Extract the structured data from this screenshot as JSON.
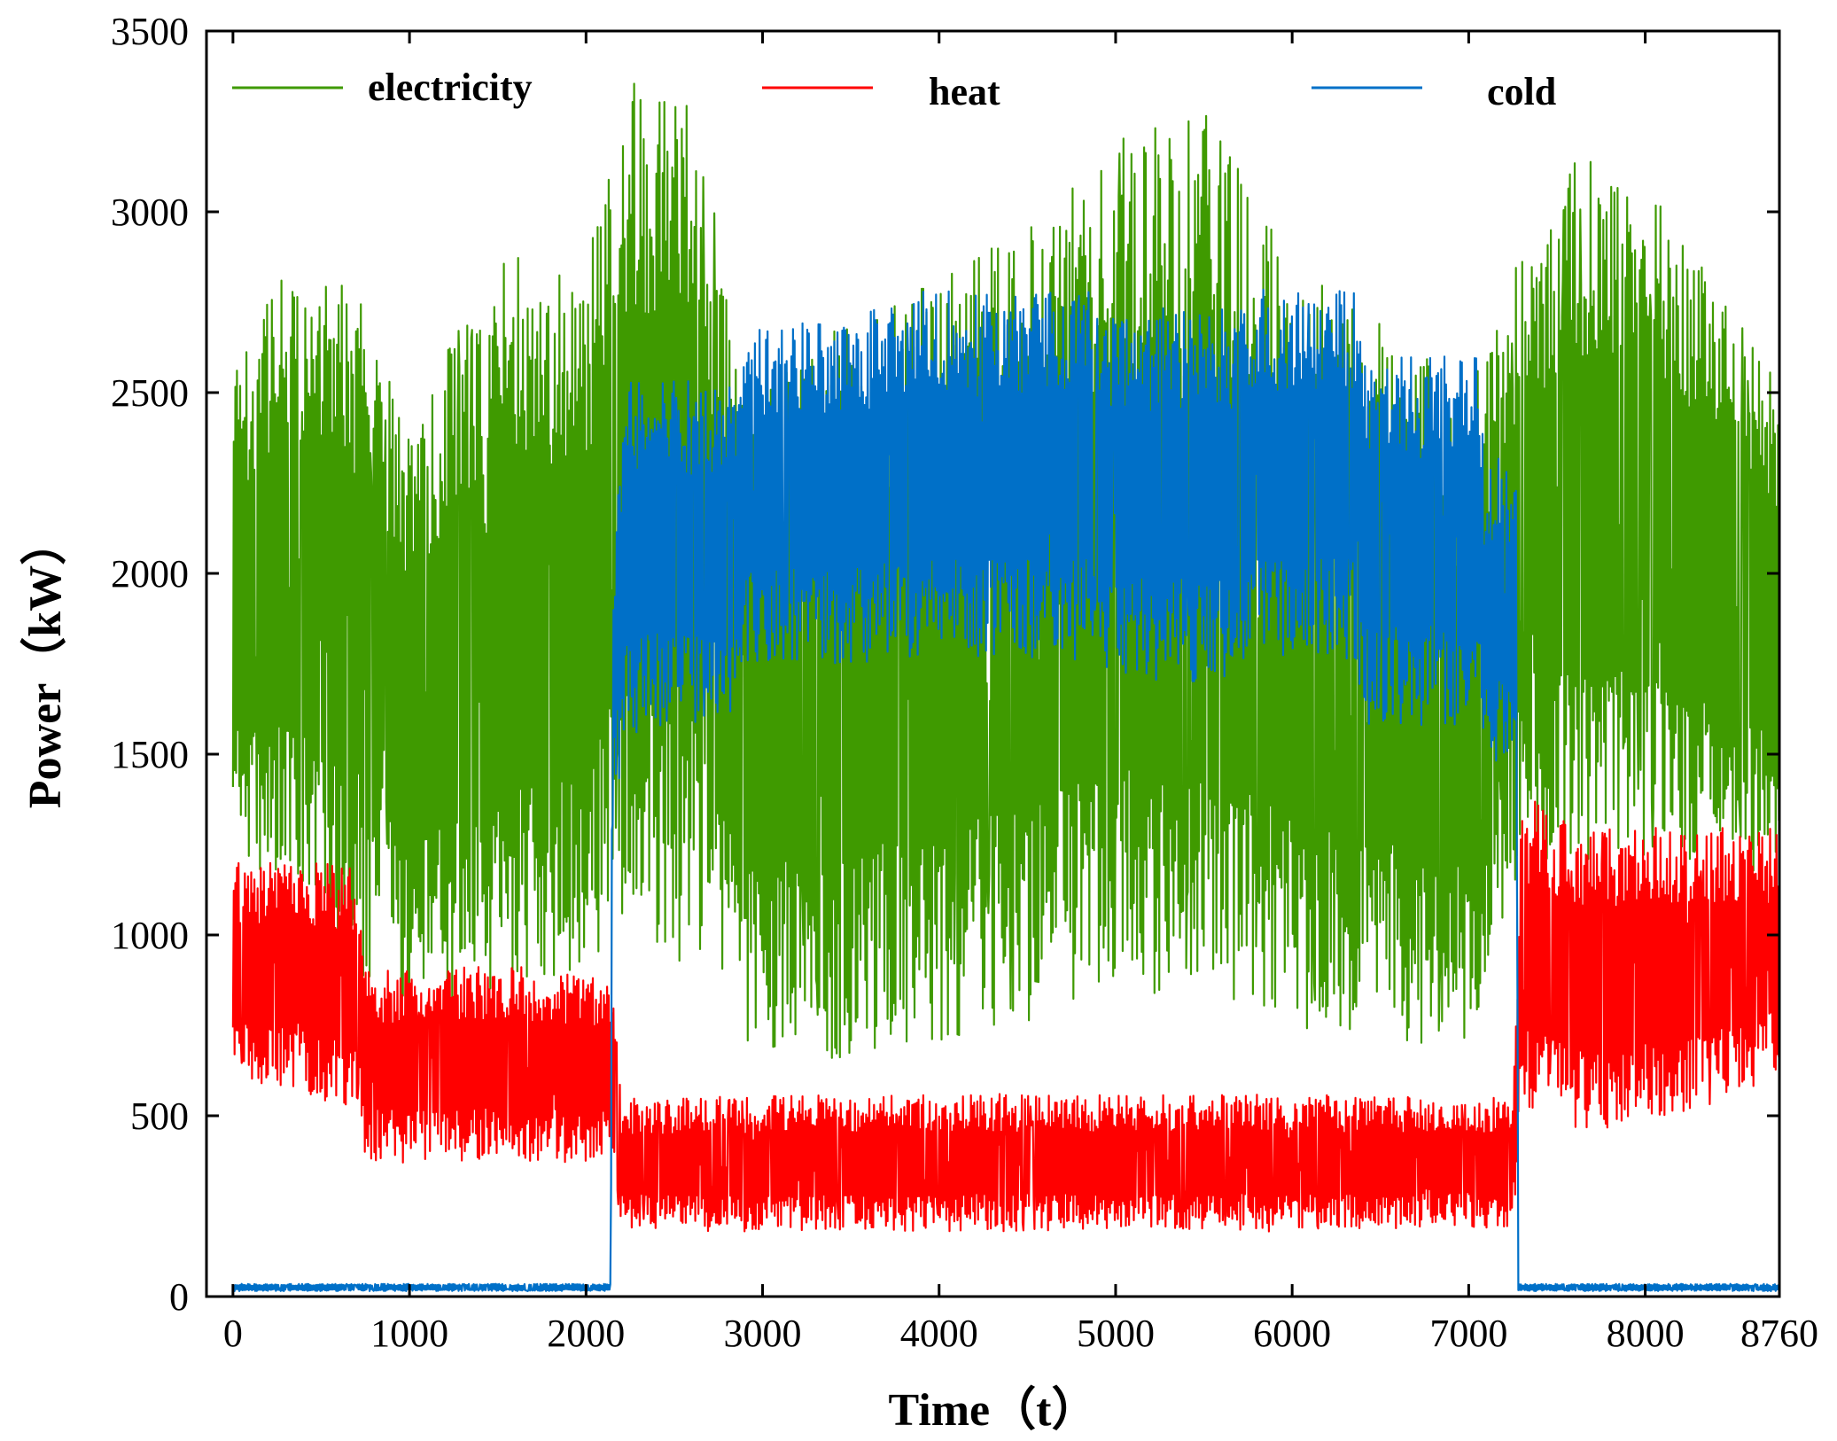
{
  "chart_data": {
    "type": "line",
    "xlabel": "Time（t）",
    "ylabel": "Power（kW）",
    "xlim": [
      -150,
      8760
    ],
    "ylim": [
      0,
      3500
    ],
    "x_ticks": [
      0,
      1000,
      2000,
      3000,
      4000,
      5000,
      6000,
      7000,
      8000,
      8760
    ],
    "y_ticks": [
      0,
      500,
      1000,
      1500,
      2000,
      2500,
      3000,
      3500
    ],
    "grid": false,
    "legend_position": "top",
    "series": [
      {
        "name": "electricity",
        "color": "#3f9a00",
        "envelope": [
          {
            "x": 0,
            "low": 1200,
            "high": 2600
          },
          {
            "x": 300,
            "low": 1150,
            "high": 2850
          },
          {
            "x": 700,
            "low": 900,
            "high": 2800
          },
          {
            "x": 1000,
            "low": 800,
            "high": 2400
          },
          {
            "x": 1500,
            "low": 850,
            "high": 2900
          },
          {
            "x": 2000,
            "low": 900,
            "high": 2800
          },
          {
            "x": 2150,
            "low": 1000,
            "high": 3350
          },
          {
            "x": 2600,
            "low": 900,
            "high": 3400
          },
          {
            "x": 2900,
            "low": 700,
            "high": 2500
          },
          {
            "x": 3400,
            "low": 650,
            "high": 2700
          },
          {
            "x": 4000,
            "low": 700,
            "high": 2850
          },
          {
            "x": 4500,
            "low": 750,
            "high": 2950
          },
          {
            "x": 5000,
            "low": 800,
            "high": 3200
          },
          {
            "x": 5500,
            "low": 800,
            "high": 3300
          },
          {
            "x": 6000,
            "low": 750,
            "high": 2850
          },
          {
            "x": 6500,
            "low": 700,
            "high": 2700
          },
          {
            "x": 7000,
            "low": 700,
            "high": 2500
          },
          {
            "x": 7300,
            "low": 1200,
            "high": 2900
          },
          {
            "x": 7600,
            "low": 1200,
            "high": 3150
          },
          {
            "x": 8000,
            "low": 1200,
            "high": 3100
          },
          {
            "x": 8400,
            "low": 1200,
            "high": 2800
          },
          {
            "x": 8760,
            "low": 1150,
            "high": 2550
          }
        ]
      },
      {
        "name": "heat",
        "color": "#ff0000",
        "envelope": [
          {
            "x": 0,
            "low": 600,
            "high": 1200
          },
          {
            "x": 700,
            "low": 520,
            "high": 1200
          },
          {
            "x": 750,
            "low": 370,
            "high": 900
          },
          {
            "x": 1500,
            "low": 370,
            "high": 920
          },
          {
            "x": 2150,
            "low": 370,
            "high": 880
          },
          {
            "x": 2200,
            "low": 180,
            "high": 550
          },
          {
            "x": 4000,
            "low": 180,
            "high": 560
          },
          {
            "x": 6000,
            "low": 180,
            "high": 560
          },
          {
            "x": 7250,
            "low": 190,
            "high": 550
          },
          {
            "x": 7300,
            "low": 500,
            "high": 1400
          },
          {
            "x": 7700,
            "low": 450,
            "high": 1300
          },
          {
            "x": 8200,
            "low": 500,
            "high": 1300
          },
          {
            "x": 8760,
            "low": 600,
            "high": 1300
          }
        ]
      },
      {
        "name": "cold",
        "color": "#0070c8",
        "envelope": [
          {
            "x": 0,
            "low": 15,
            "high": 35
          },
          {
            "x": 2140,
            "low": 15,
            "high": 35
          },
          {
            "x": 2150,
            "low": 1300,
            "high": 2050
          },
          {
            "x": 2220,
            "low": 1550,
            "high": 2540
          },
          {
            "x": 2850,
            "low": 1600,
            "high": 2530
          },
          {
            "x": 2900,
            "low": 1750,
            "high": 2700
          },
          {
            "x": 3600,
            "low": 1750,
            "high": 2710
          },
          {
            "x": 3650,
            "low": 1770,
            "high": 2780
          },
          {
            "x": 4900,
            "low": 1760,
            "high": 2780
          },
          {
            "x": 5000,
            "low": 1700,
            "high": 2730
          },
          {
            "x": 5700,
            "low": 1700,
            "high": 2740
          },
          {
            "x": 5750,
            "low": 1760,
            "high": 2790
          },
          {
            "x": 6350,
            "low": 1760,
            "high": 2790
          },
          {
            "x": 6400,
            "low": 1580,
            "high": 2600
          },
          {
            "x": 7050,
            "low": 1580,
            "high": 2600
          },
          {
            "x": 7100,
            "low": 1470,
            "high": 2320
          },
          {
            "x": 7270,
            "low": 1470,
            "high": 2320
          },
          {
            "x": 7280,
            "low": 15,
            "high": 35
          },
          {
            "x": 8760,
            "low": 15,
            "high": 35
          }
        ]
      }
    ]
  }
}
